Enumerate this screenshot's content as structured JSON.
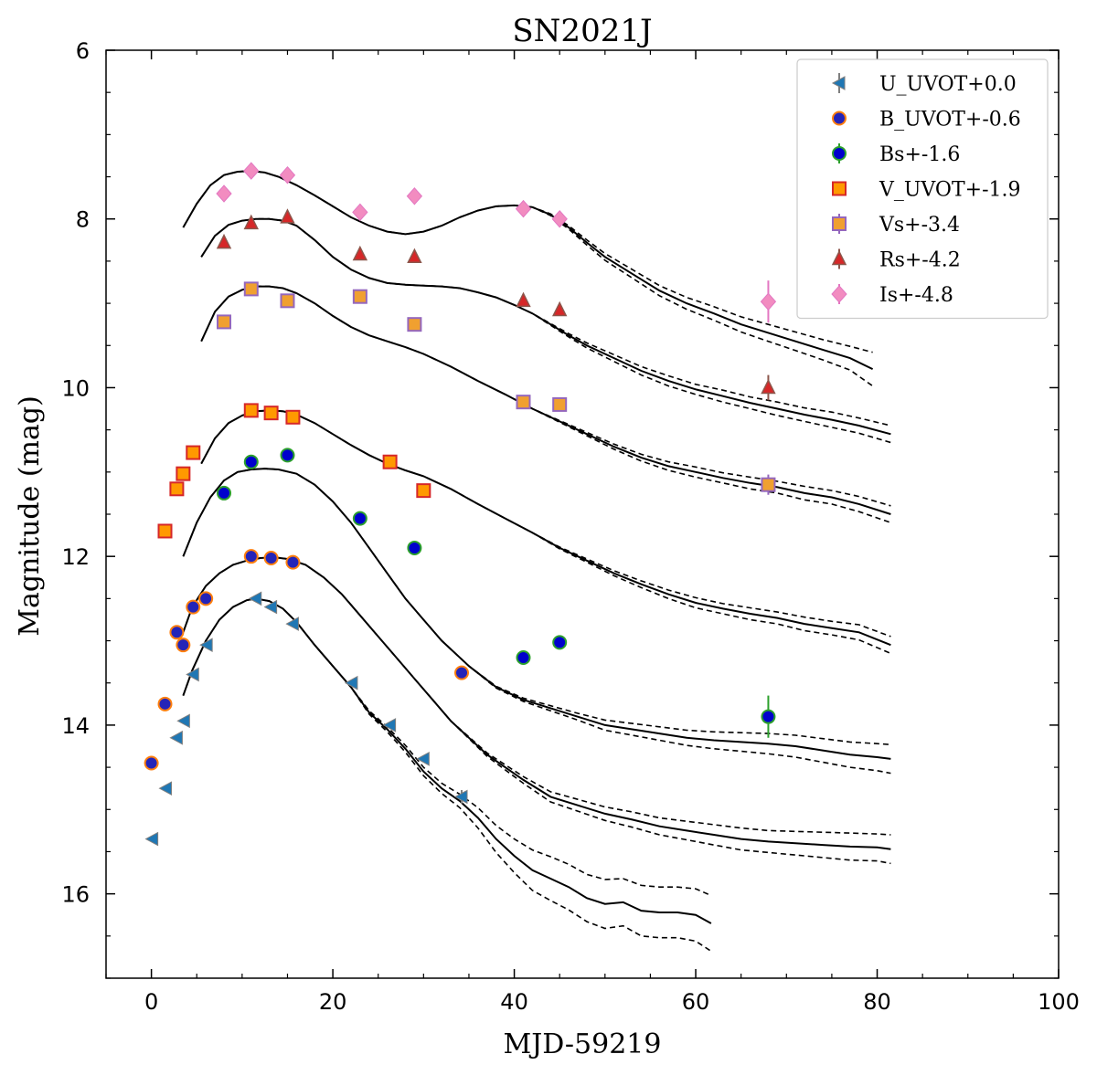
{
  "chart_data": {
    "type": "scatter",
    "title": "SN2021J",
    "xlabel": "MJD-59219",
    "ylabel": "Magnitude (mag)",
    "xlim": [
      -5,
      100
    ],
    "ylim": [
      17,
      6
    ],
    "x_ticks": [
      0,
      20,
      40,
      60,
      80,
      100
    ],
    "y_ticks": [
      6,
      8,
      10,
      12,
      14,
      16
    ],
    "legend_position": "top-right",
    "series": [
      {
        "name": "U_UVOT+0.0",
        "marker": "tri-left",
        "color": "#1f77b4",
        "edge": "#7f7f7f",
        "x": [
          0.1,
          1.6,
          2.8,
          3.6,
          4.6,
          6.1,
          11.5,
          13.2,
          15.6,
          22.1,
          26.3,
          30.0,
          34.2
        ],
        "y": [
          15.35,
          14.75,
          14.15,
          13.95,
          13.4,
          13.05,
          12.5,
          12.6,
          12.8,
          13.5,
          14.0,
          14.4,
          14.85
        ],
        "err": [
          0,
          0,
          0,
          0,
          0,
          0,
          0,
          0,
          0,
          0,
          0,
          0,
          0.08
        ]
      },
      {
        "name": "B_UVOT+-0.6",
        "marker": "circle",
        "color": "#2424b8",
        "edge": "#ff7f0e",
        "x": [
          0.0,
          1.5,
          2.8,
          3.5,
          4.6,
          6.0,
          11.0,
          13.2,
          15.6,
          34.2
        ],
        "y": [
          14.45,
          13.75,
          12.9,
          13.05,
          12.6,
          12.5,
          12.0,
          12.02,
          12.07,
          13.38
        ],
        "err": [
          0,
          0,
          0,
          0,
          0,
          0,
          0,
          0,
          0,
          0
        ]
      },
      {
        "name": "Bs+-1.6",
        "marker": "circle",
        "color": "#0000cc",
        "edge": "#2ca02c",
        "x": [
          8.0,
          11.0,
          15.0,
          23.0,
          29.0,
          41.0,
          45.0,
          68.0
        ],
        "y": [
          11.25,
          10.88,
          10.8,
          11.55,
          11.9,
          13.2,
          13.02,
          13.9
        ],
        "err": [
          0,
          0,
          0,
          0,
          0,
          0,
          0,
          0.25
        ]
      },
      {
        "name": "V_UVOT+-1.9",
        "marker": "square",
        "color": "#ff9900",
        "edge": "#d62728",
        "x": [
          1.5,
          2.8,
          3.5,
          4.6,
          11.0,
          13.2,
          15.6,
          26.3,
          30.0
        ],
        "y": [
          11.7,
          11.2,
          11.02,
          10.77,
          10.27,
          10.3,
          10.35,
          10.88,
          11.22
        ],
        "err": [
          0,
          0,
          0,
          0,
          0,
          0,
          0,
          0,
          0
        ]
      },
      {
        "name": "Vs+-3.4",
        "marker": "square",
        "color": "#f0a030",
        "edge": "#9467bd",
        "x": [
          8.0,
          11.0,
          15.0,
          23.0,
          29.0,
          41.0,
          45.0,
          68.0
        ],
        "y": [
          9.22,
          8.83,
          8.97,
          8.92,
          9.25,
          10.17,
          10.2,
          11.15
        ],
        "err": [
          0,
          0,
          0,
          0,
          0,
          0,
          0,
          0.12
        ]
      },
      {
        "name": "Rs+-4.2",
        "marker": "triangle-up",
        "color": "#d62728",
        "edge": "#8c564b",
        "x": [
          8.0,
          11.0,
          15.0,
          23.0,
          29.0,
          41.0,
          45.0,
          68.0
        ],
        "y": [
          8.28,
          8.05,
          7.98,
          8.42,
          8.45,
          8.97,
          9.08,
          10.0
        ],
        "err": [
          0,
          0,
          0,
          0,
          0,
          0,
          0,
          0.15
        ]
      },
      {
        "name": "Is+-4.8",
        "marker": "diamond",
        "color": "#f28cc0",
        "edge": "#e377c2",
        "x": [
          8.0,
          11.0,
          15.0,
          23.0,
          29.0,
          41.0,
          45.0,
          68.0
        ],
        "y": [
          7.7,
          7.43,
          7.48,
          7.92,
          7.73,
          7.88,
          8.0,
          8.98
        ],
        "err": [
          0,
          0,
          0,
          0,
          0,
          0,
          0,
          0.25
        ]
      }
    ],
    "models": [
      {
        "name": "U model",
        "color": "#000000",
        "x": [
          3.5,
          4.5,
          6,
          7.5,
          9,
          10.5,
          11.5,
          13,
          14.5,
          16,
          18,
          20,
          22,
          24,
          26,
          28,
          30,
          32,
          34,
          36,
          38,
          40,
          42,
          44,
          46,
          48,
          50,
          52,
          54,
          56,
          58,
          60,
          61.7
        ],
        "y": [
          13.65,
          13.35,
          13.0,
          12.75,
          12.6,
          12.52,
          12.5,
          12.53,
          12.62,
          12.78,
          13.05,
          13.3,
          13.55,
          13.85,
          14.05,
          14.28,
          14.55,
          14.75,
          14.9,
          15.1,
          15.35,
          15.55,
          15.72,
          15.82,
          15.92,
          16.05,
          16.12,
          16.1,
          16.2,
          16.22,
          16.22,
          16.25,
          16.35
        ],
        "band": [
          0,
          0,
          0,
          0,
          0,
          0,
          0,
          0,
          0,
          0,
          0,
          0,
          0,
          0.02,
          0.03,
          0.04,
          0.05,
          0.06,
          0.08,
          0.12,
          0.16,
          0.2,
          0.24,
          0.26,
          0.27,
          0.28,
          0.29,
          0.28,
          0.3,
          0.3,
          0.3,
          0.31,
          0.33
        ]
      },
      {
        "name": "B model",
        "color": "#000000",
        "x": [
          3.5,
          4.5,
          6,
          7.5,
          9,
          10.5,
          12,
          13.5,
          15,
          17,
          19,
          21,
          23,
          25,
          27,
          29,
          31,
          33,
          35,
          37,
          39,
          41,
          44,
          47,
          50,
          53,
          56,
          59,
          62,
          65,
          68,
          71,
          74,
          77,
          80,
          81.5
        ],
        "y": [
          12.9,
          12.6,
          12.35,
          12.2,
          12.1,
          12.05,
          12.02,
          12.01,
          12.03,
          12.1,
          12.25,
          12.45,
          12.7,
          12.95,
          13.2,
          13.45,
          13.7,
          13.95,
          14.15,
          14.35,
          14.5,
          14.65,
          14.85,
          14.95,
          15.05,
          15.12,
          15.2,
          15.25,
          15.3,
          15.35,
          15.38,
          15.4,
          15.42,
          15.44,
          15.45,
          15.47
        ],
        "band": [
          0,
          0,
          0,
          0,
          0,
          0,
          0,
          0,
          0,
          0,
          0,
          0,
          0,
          0,
          0,
          0,
          0,
          0,
          0.01,
          0.02,
          0.03,
          0.04,
          0.06,
          0.07,
          0.08,
          0.09,
          0.1,
          0.11,
          0.12,
          0.13,
          0.13,
          0.14,
          0.15,
          0.16,
          0.16,
          0.17
        ]
      },
      {
        "name": "Bs model",
        "color": "#000000",
        "x": [
          3.5,
          5,
          6.5,
          8,
          9.5,
          11,
          12.5,
          14,
          16,
          18,
          20,
          22,
          24,
          26,
          28,
          30,
          32,
          35,
          38,
          41,
          44,
          47,
          50,
          53,
          56,
          59,
          62,
          65,
          68,
          71,
          74,
          77,
          80,
          81.5
        ],
        "y": [
          12.0,
          11.6,
          11.3,
          11.1,
          11.0,
          10.97,
          10.96,
          10.97,
          11.02,
          11.15,
          11.35,
          11.6,
          11.9,
          12.2,
          12.5,
          12.75,
          13.0,
          13.3,
          13.55,
          13.7,
          13.8,
          13.9,
          14.0,
          14.05,
          14.1,
          14.15,
          14.18,
          14.2,
          14.22,
          14.25,
          14.3,
          14.35,
          14.38,
          14.4
        ],
        "band": [
          0,
          0,
          0,
          0,
          0,
          0,
          0,
          0,
          0,
          0,
          0,
          0,
          0,
          0,
          0,
          0,
          0,
          0,
          0.01,
          0.02,
          0.03,
          0.04,
          0.06,
          0.07,
          0.08,
          0.09,
          0.1,
          0.11,
          0.12,
          0.13,
          0.14,
          0.15,
          0.16,
          0.17
        ]
      },
      {
        "name": "V model",
        "color": "#000000",
        "x": [
          5.5,
          7,
          8.5,
          10,
          11.5,
          13,
          14.5,
          16,
          18,
          20,
          22,
          24,
          26,
          28,
          30,
          33,
          36,
          39,
          42,
          45,
          48,
          51,
          54,
          57,
          60,
          63,
          66,
          69,
          72,
          75,
          78,
          81.5
        ],
        "y": [
          10.9,
          10.6,
          10.42,
          10.33,
          10.28,
          10.27,
          10.28,
          10.32,
          10.42,
          10.55,
          10.68,
          10.8,
          10.9,
          10.98,
          11.05,
          11.2,
          11.38,
          11.55,
          11.72,
          11.9,
          12.05,
          12.2,
          12.33,
          12.45,
          12.55,
          12.62,
          12.68,
          12.73,
          12.8,
          12.85,
          12.9,
          13.05
        ],
        "band": [
          0,
          0,
          0,
          0,
          0,
          0,
          0,
          0,
          0,
          0,
          0,
          0,
          0,
          0,
          0,
          0,
          0,
          0,
          0,
          0.01,
          0.02,
          0.03,
          0.04,
          0.05,
          0.06,
          0.06,
          0.07,
          0.07,
          0.08,
          0.08,
          0.09,
          0.1
        ]
      },
      {
        "name": "Vs model",
        "color": "#000000",
        "x": [
          5.5,
          7,
          8.5,
          10,
          11.5,
          13,
          14.5,
          16,
          18,
          20,
          22,
          24,
          26,
          28,
          30,
          33,
          36,
          39,
          42,
          45,
          48,
          51,
          54,
          57,
          60,
          63,
          66,
          69,
          72,
          75,
          78,
          81.5
        ],
        "y": [
          9.45,
          9.1,
          8.92,
          8.84,
          8.8,
          8.8,
          8.82,
          8.88,
          9.0,
          9.15,
          9.28,
          9.38,
          9.45,
          9.52,
          9.6,
          9.75,
          9.92,
          10.08,
          10.25,
          10.4,
          10.55,
          10.7,
          10.83,
          10.93,
          11.0,
          11.07,
          11.13,
          11.18,
          11.25,
          11.3,
          11.38,
          11.5
        ],
        "band": [
          0,
          0,
          0,
          0,
          0,
          0,
          0,
          0,
          0,
          0,
          0,
          0,
          0,
          0,
          0,
          0,
          0,
          0,
          0,
          0.01,
          0.02,
          0.03,
          0.04,
          0.05,
          0.06,
          0.06,
          0.07,
          0.07,
          0.08,
          0.08,
          0.09,
          0.1
        ]
      },
      {
        "name": "Rs model",
        "color": "#000000",
        "x": [
          5.5,
          7,
          8.5,
          10,
          11.5,
          13,
          14.5,
          16,
          18,
          20,
          22,
          24,
          26,
          28,
          30,
          32,
          34,
          36,
          38,
          40,
          42,
          44,
          46,
          48,
          51,
          54,
          57,
          60,
          63,
          66,
          69,
          72,
          75,
          78,
          81.5
        ],
        "y": [
          8.45,
          8.2,
          8.07,
          8.02,
          8.0,
          8.0,
          8.02,
          8.08,
          8.25,
          8.45,
          8.6,
          8.7,
          8.76,
          8.78,
          8.79,
          8.8,
          8.82,
          8.87,
          8.93,
          9.02,
          9.12,
          9.25,
          9.38,
          9.5,
          9.65,
          9.8,
          9.92,
          10.02,
          10.1,
          10.18,
          10.25,
          10.32,
          10.38,
          10.45,
          10.55
        ],
        "band": [
          0,
          0,
          0,
          0,
          0,
          0,
          0,
          0,
          0,
          0,
          0,
          0,
          0,
          0,
          0,
          0,
          0,
          0,
          0,
          0,
          0,
          0.01,
          0.02,
          0.03,
          0.04,
          0.05,
          0.06,
          0.06,
          0.07,
          0.07,
          0.08,
          0.08,
          0.09,
          0.09,
          0.1
        ]
      },
      {
        "name": "Is model",
        "color": "#000000",
        "x": [
          3.5,
          5,
          6.5,
          8,
          9.5,
          11,
          12.5,
          14,
          16,
          18,
          20,
          22,
          24,
          26,
          28,
          30,
          32,
          34,
          36,
          38,
          40,
          42,
          44,
          46,
          48,
          50,
          53,
          56,
          59,
          62,
          65,
          68,
          71,
          74,
          77,
          79.5
        ],
        "y": [
          8.1,
          7.82,
          7.6,
          7.48,
          7.44,
          7.43,
          7.45,
          7.5,
          7.6,
          7.72,
          7.85,
          7.98,
          8.08,
          8.15,
          8.18,
          8.15,
          8.08,
          7.98,
          7.9,
          7.85,
          7.84,
          7.86,
          7.95,
          8.1,
          8.28,
          8.45,
          8.65,
          8.85,
          9.0,
          9.12,
          9.25,
          9.35,
          9.45,
          9.55,
          9.65,
          9.78
        ],
        "band": [
          0,
          0,
          0,
          0,
          0,
          0,
          0,
          0,
          0,
          0,
          0,
          0,
          0,
          0,
          0,
          0,
          0,
          0,
          0,
          0,
          0,
          0,
          0.01,
          0.02,
          0.03,
          0.04,
          0.05,
          0.06,
          0.07,
          0.08,
          0.09,
          0.1,
          0.11,
          0.12,
          0.14,
          0.2
        ]
      }
    ]
  }
}
